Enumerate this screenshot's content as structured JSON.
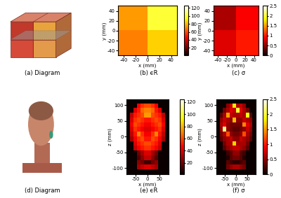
{
  "chart_data": [
    {
      "type": "diagram",
      "caption": "(a) Diagram"
    },
    {
      "type": "heatmap",
      "caption": "(b) ϵR",
      "x_label": "x (mm)",
      "y_label": "y (mm)",
      "xlim": [
        -50,
        50
      ],
      "ylim": [
        -50,
        50
      ],
      "xticks": [
        -40,
        -20,
        0,
        20,
        40
      ],
      "yticks": [
        -40,
        -20,
        0,
        20,
        40
      ],
      "cells": [
        [
          75,
          100
        ],
        [
          70,
          85
        ]
      ],
      "colorbar_range": [
        1,
        125
      ],
      "colorbar_ticks": [
        20,
        40,
        60,
        80,
        100,
        120
      ]
    },
    {
      "type": "heatmap",
      "caption": "(c) σ",
      "x_label": "x (mm)",
      "y_label": "y (mm)",
      "xlim": [
        -50,
        50
      ],
      "ylim": [
        -50,
        50
      ],
      "xticks": [
        -40,
        -20,
        0,
        20,
        40
      ],
      "yticks": [
        -40,
        -20,
        0,
        20,
        40
      ],
      "cells": [
        [
          0.6,
          0.9
        ],
        [
          0.8,
          1.0
        ]
      ],
      "colorbar_range": [
        0,
        2.5
      ],
      "colorbar_ticks": [
        0,
        0.5,
        1,
        1.5,
        2,
        2.5
      ]
    },
    {
      "type": "diagram",
      "caption": "(d) Diagram"
    },
    {
      "type": "heatmap",
      "caption": "(e) ϵR",
      "x_label": "x (mm)",
      "y_label": "z (mm)",
      "xlim": [
        -90,
        90
      ],
      "ylim": [
        -120,
        120
      ],
      "xticks": [
        -50,
        0,
        50
      ],
      "yticks": [
        -100,
        -50,
        0,
        50,
        100
      ],
      "cells": [
        [
          1,
          1,
          1,
          1,
          1,
          1,
          1,
          1,
          1,
          1,
          1,
          1
        ],
        [
          1,
          1,
          1,
          45,
          55,
          60,
          60,
          55,
          45,
          1,
          1,
          1
        ],
        [
          1,
          1,
          40,
          50,
          65,
          70,
          70,
          65,
          50,
          40,
          1,
          1
        ],
        [
          1,
          35,
          50,
          55,
          60,
          75,
          75,
          60,
          55,
          50,
          35,
          1
        ],
        [
          1,
          40,
          55,
          60,
          55,
          50,
          50,
          55,
          60,
          55,
          40,
          1
        ],
        [
          1,
          45,
          60,
          55,
          50,
          45,
          45,
          50,
          55,
          60,
          45,
          1
        ],
        [
          1,
          40,
          55,
          50,
          45,
          40,
          40,
          45,
          50,
          55,
          40,
          1
        ],
        [
          1,
          35,
          50,
          70,
          55,
          45,
          45,
          55,
          70,
          50,
          35,
          1
        ],
        [
          1,
          30,
          45,
          55,
          60,
          50,
          50,
          60,
          55,
          45,
          30,
          1
        ],
        [
          1,
          1,
          40,
          50,
          55,
          60,
          60,
          55,
          50,
          40,
          1,
          1
        ],
        [
          1,
          1,
          35,
          45,
          50,
          55,
          55,
          50,
          45,
          35,
          1,
          1
        ],
        [
          1,
          1,
          1,
          20,
          30,
          40,
          40,
          30,
          20,
          1,
          1,
          1
        ],
        [
          1,
          1,
          1,
          15,
          25,
          35,
          35,
          25,
          15,
          1,
          1,
          1
        ],
        [
          1,
          1,
          1,
          25,
          20,
          10,
          10,
          20,
          25,
          1,
          1,
          1
        ],
        [
          1,
          1,
          1,
          30,
          35,
          40,
          40,
          35,
          30,
          1,
          1,
          1
        ],
        [
          1,
          1,
          1,
          1,
          1,
          1,
          1,
          1,
          1,
          1,
          1,
          1
        ]
      ],
      "colorbar_range": [
        1,
        125
      ],
      "colorbar_ticks": [
        20,
        40,
        60,
        80,
        100,
        120
      ]
    },
    {
      "type": "heatmap",
      "caption": "(f) σ",
      "x_label": "x (mm)",
      "y_label": "z (mm)",
      "xlim": [
        -90,
        90
      ],
      "ylim": [
        -120,
        120
      ],
      "xticks": [
        -50,
        0,
        50
      ],
      "yticks": [
        -100,
        -50,
        0,
        50,
        100
      ],
      "cells": [
        [
          0,
          0,
          0,
          0,
          0,
          0,
          0,
          0,
          0,
          0,
          0,
          0
        ],
        [
          0,
          0,
          0,
          0.5,
          0.7,
          1.8,
          0.6,
          0.7,
          0.5,
          0,
          0,
          0
        ],
        [
          0,
          0,
          0.4,
          0.6,
          0.8,
          0.7,
          2.0,
          0.8,
          0.6,
          0.4,
          0,
          0
        ],
        [
          0,
          0.3,
          0.6,
          1.5,
          0.7,
          0.6,
          0.6,
          0.7,
          0.6,
          1.9,
          0.3,
          0
        ],
        [
          0,
          0.5,
          0.7,
          0.6,
          0.5,
          1.6,
          0.5,
          0.5,
          0.7,
          0.6,
          0.5,
          0
        ],
        [
          0,
          0.6,
          0.8,
          0.5,
          0.4,
          0.4,
          0.4,
          0.4,
          1.4,
          0.8,
          0.6,
          0
        ],
        [
          0,
          0.5,
          2.2,
          0.5,
          0.4,
          0.3,
          0.3,
          0.4,
          0.5,
          0.7,
          0.5,
          0
        ],
        [
          0,
          0.4,
          0.6,
          1.2,
          0.5,
          0.4,
          0.4,
          0.5,
          1.2,
          0.6,
          0.4,
          0
        ],
        [
          0,
          0.3,
          0.5,
          0.6,
          0.7,
          0.5,
          0.5,
          0.7,
          0.6,
          0.5,
          0.3,
          0
        ],
        [
          0,
          0,
          0.4,
          0.6,
          0.6,
          1.7,
          0.6,
          0.6,
          0.6,
          0.4,
          0,
          0
        ],
        [
          0,
          0,
          0.3,
          0.5,
          0.6,
          0.7,
          0.7,
          0.6,
          0.5,
          0.3,
          0,
          0
        ],
        [
          0,
          0,
          0,
          0.2,
          0.3,
          0.5,
          0.5,
          0.3,
          0.2,
          0,
          0,
          0
        ],
        [
          0,
          0,
          0,
          0.1,
          0.3,
          0.4,
          0.4,
          0.3,
          0.1,
          0,
          0,
          0
        ],
        [
          0,
          0,
          0,
          0.3,
          0.2,
          0.1,
          0.1,
          0.2,
          0.3,
          0,
          0,
          0
        ],
        [
          0,
          0,
          0,
          0.4,
          0.5,
          0.6,
          0.6,
          0.5,
          0.4,
          0,
          0,
          0
        ],
        [
          0,
          0,
          0,
          0,
          0,
          0,
          0,
          0,
          0,
          0,
          0,
          0
        ]
      ],
      "colorbar_range": [
        0,
        2.5
      ],
      "colorbar_ticks": [
        0,
        0.5,
        1,
        1.5,
        2,
        2.5
      ]
    }
  ]
}
